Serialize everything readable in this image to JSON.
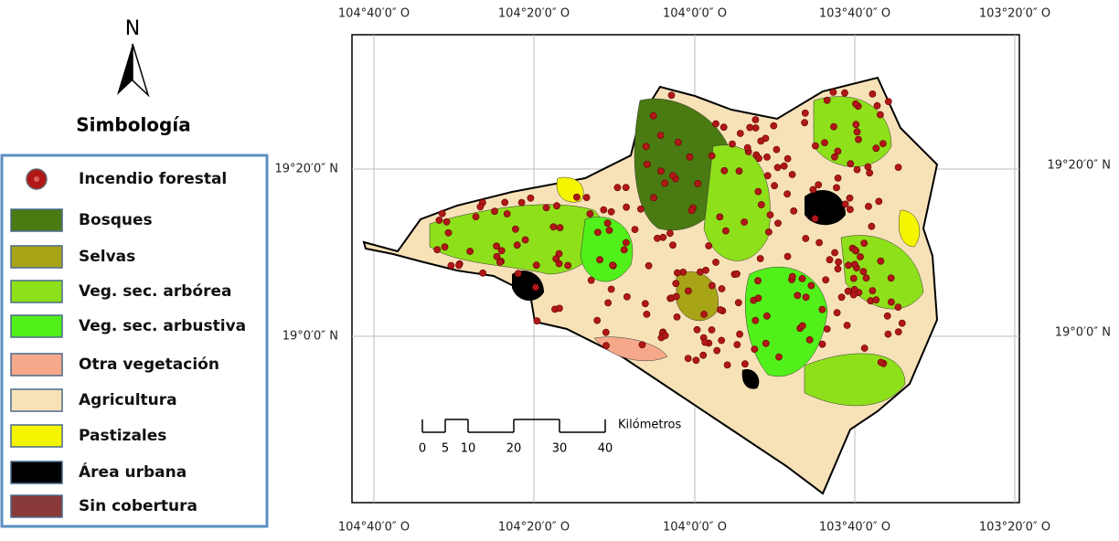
{
  "north": "N",
  "legend": {
    "title": "Simbología",
    "items": [
      {
        "label": "Incendio forestal",
        "color": "#b01818"
      },
      {
        "label": "Bosques",
        "color": "#4a7a12"
      },
      {
        "label": "Selvas",
        "color": "#a8a418"
      },
      {
        "label": "Veg. sec. arbórea",
        "color": "#8ee01a"
      },
      {
        "label": "Veg. sec. arbustiva",
        "color": "#52f01a"
      },
      {
        "label": "Otra vegetación",
        "color": "#f5a98a"
      },
      {
        "label": "Agricultura",
        "color": "#f7e2b8"
      },
      {
        "label": "Pastizales",
        "color": "#f5f500"
      },
      {
        "label": "Área urbana",
        "color": "#000000"
      },
      {
        "label": "Sin cobertura",
        "color": "#8b3a3a"
      }
    ]
  },
  "longitude_labels": [
    "104°40′0″ O",
    "104°20′0″ O",
    "104°0′0″ O",
    "103°40′0″ O",
    "103°20′0″ O"
  ],
  "latitude_labels": [
    "19°20′0″ N",
    "19°0′0″ N"
  ],
  "scale": {
    "unit": "Kilómetros",
    "ticks": [
      0,
      5,
      10,
      20,
      30,
      40
    ]
  }
}
